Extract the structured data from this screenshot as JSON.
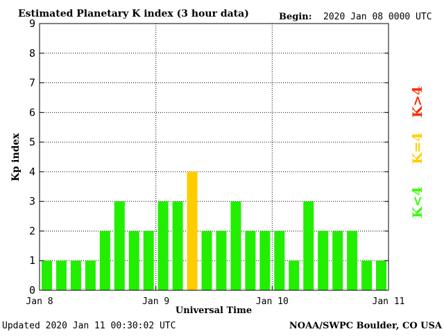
{
  "chart_data": {
    "type": "bar",
    "title": "Estimated Planetary K index (3 hour data)",
    "begin_label": "Begin:",
    "begin_value": "2020 Jan 08 0000 UTC",
    "xlabel": "Universal Time",
    "ylabel": "Kp index",
    "ylim": [
      0,
      9
    ],
    "yticks": [
      "0",
      "1",
      "2",
      "3",
      "4",
      "5",
      "6",
      "7",
      "8",
      "9"
    ],
    "xticks": [
      "Jan 8",
      "Jan 9",
      "Jan 10",
      "Jan 11"
    ],
    "grid": true,
    "values": [
      1,
      1,
      1,
      1,
      2,
      3,
      2,
      2,
      3,
      3,
      4,
      2,
      2,
      3,
      2,
      2,
      2,
      1,
      3,
      2,
      2,
      2,
      1,
      1
    ],
    "legend": [
      {
        "label": "K<4",
        "color": "#33ff00"
      },
      {
        "label": "K=4",
        "color": "#ffcc00"
      },
      {
        "label": "K>4",
        "color": "#ff2a00"
      }
    ],
    "colors": {
      "below": "#22ee00",
      "equal": "#ffcc00",
      "above": "#ff2a00"
    }
  },
  "footer": {
    "updated": "Updated 2020 Jan 11 00:30:02 UTC",
    "source": "NOAA/SWPC Boulder, CO USA"
  }
}
